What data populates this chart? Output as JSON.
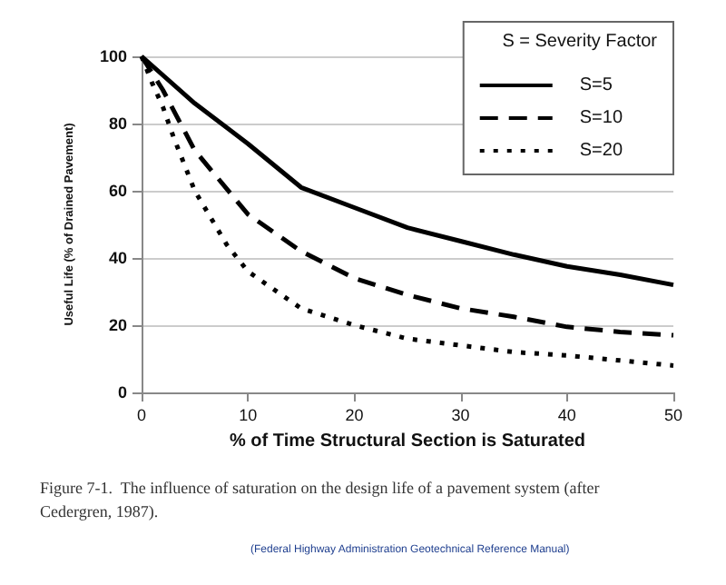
{
  "chart_data": {
    "type": "line",
    "xlabel": "% of Time Structural Section is Saturated",
    "ylabel": "Useful Life (% of Drained Pavement)",
    "legend_title": "S = Severity Factor",
    "xlim": [
      0,
      50
    ],
    "xticks": [
      0,
      10,
      20,
      30,
      40,
      50
    ],
    "ylim": [
      0,
      100
    ],
    "yticks": [
      0,
      20,
      40,
      60,
      80,
      100
    ],
    "grid": "y",
    "legend": "top right",
    "marker": "none",
    "series": [
      {
        "name": "S=5",
        "color": "#000000",
        "line_style": "solid",
        "x": [
          0,
          5,
          10,
          15,
          20,
          25,
          30,
          35,
          40,
          45,
          50
        ],
        "values": [
          100,
          86,
          74,
          61,
          55,
          49,
          45,
          41,
          37.5,
          35,
          32
        ]
      },
      {
        "name": "S=10",
        "color": "#000000",
        "line_style": "dashed",
        "x": [
          0,
          2,
          5,
          10,
          15,
          20,
          25,
          30,
          35,
          40,
          45,
          50
        ],
        "values": [
          100,
          90,
          72,
          53,
          42,
          34,
          29,
          25,
          22.5,
          19.5,
          18,
          17
        ]
      },
      {
        "name": "S=20",
        "color": "#000000",
        "line_style": "dotted",
        "x": [
          0,
          1,
          2,
          3,
          5,
          8,
          10,
          15,
          20,
          25,
          30,
          35,
          40,
          45,
          50
        ],
        "values": [
          100,
          92,
          85,
          76,
          60,
          44,
          36,
          25,
          20,
          16,
          14,
          12,
          11,
          9.5,
          8
        ]
      }
    ],
    "annotations": [
      "Figure 7-1.  The influence of saturation on the design life of a pavement system (after Cedergren, 1987).",
      "(Federal Highway Administration Geotechnical Reference Manual)"
    ]
  }
}
